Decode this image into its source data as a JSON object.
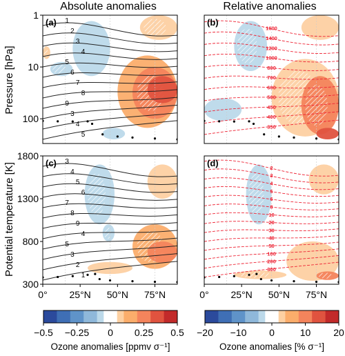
{
  "figure": {
    "col_titles": [
      "Absolute anomalies",
      "Relative anomalies"
    ],
    "row_labels": [
      "Pressure [hPa]",
      "Potential temperature [K]"
    ]
  },
  "colors": {
    "scale": [
      "#2b4a9c",
      "#3f6fb5",
      "#5f93c9",
      "#8fb8da",
      "#bcd9ea",
      "#ffffff",
      "#fdd0a2",
      "#fbad6b",
      "#f4845c",
      "#e0533f",
      "#c22a2a"
    ],
    "zero_band": "#ffffff",
    "contour": "#222222",
    "relative_contour": "#ee2233"
  },
  "chart_data": [
    {
      "type": "heatmap",
      "panel": "(a)",
      "title": "Absolute anomalies",
      "ylabel": "Pressure [hPa]",
      "y_scale": "log",
      "ylim": [
        300,
        1
      ],
      "y_ticks": [
        "1",
        "10",
        "100"
      ],
      "xlim": [
        0,
        90
      ],
      "x_ticks": [],
      "contour_labels": [
        "1",
        "2",
        "3",
        "4",
        "5",
        "6",
        "7",
        "8",
        "9",
        "3",
        "4",
        "5"
      ],
      "anomaly_regions": [
        {
          "sign": "negative",
          "level": -0.1,
          "lat": [
            20,
            45
          ],
          "p": [
            1.3,
            15
          ]
        },
        {
          "sign": "negative",
          "level": -0.05,
          "lat": [
            5,
            20
          ],
          "p": [
            8,
            15
          ]
        },
        {
          "sign": "negative",
          "level": -0.05,
          "lat": [
            40,
            55
          ],
          "p": [
            150,
            250
          ]
        },
        {
          "sign": "positive",
          "level": 0.4,
          "lat": [
            70,
            90
          ],
          "p": [
            15,
            50
          ]
        },
        {
          "sign": "positive",
          "level": 0.3,
          "lat": [
            60,
            90
          ],
          "p": [
            10,
            100
          ]
        },
        {
          "sign": "positive",
          "level": 0.15,
          "lat": [
            50,
            90
          ],
          "p": [
            6,
            150
          ]
        },
        {
          "sign": "positive",
          "level": 0.1,
          "lat": [
            65,
            90
          ],
          "p": [
            1,
            3
          ]
        },
        {
          "sign": "positive",
          "level": 0.05,
          "lat": [
            0,
            5
          ],
          "p": [
            4,
            7
          ]
        }
      ]
    },
    {
      "type": "heatmap",
      "panel": "(b)",
      "title": "Relative anomalies",
      "y_scale": "log",
      "ylim": [
        300,
        1
      ],
      "xlim": [
        0,
        90
      ],
      "x_ticks": [],
      "isentrope_labels": [
        "1600",
        "1400",
        "1200",
        "1000",
        "800",
        "700",
        "600",
        "500",
        "450",
        "400",
        "350"
      ],
      "anomaly_regions": [
        {
          "sign": "negative",
          "level": -5,
          "lat": [
            20,
            42
          ],
          "p": [
            1.3,
            12
          ]
        },
        {
          "sign": "negative",
          "level": -5,
          "lat": [
            0,
            25
          ],
          "p": [
            40,
            110
          ]
        },
        {
          "sign": "positive",
          "level": 15,
          "lat": [
            75,
            90
          ],
          "p": [
            150,
            250
          ]
        },
        {
          "sign": "positive",
          "level": 10,
          "lat": [
            65,
            90
          ],
          "p": [
            15,
            200
          ]
        },
        {
          "sign": "positive",
          "level": 5,
          "lat": [
            45,
            90
          ],
          "p": [
            7,
            220
          ]
        },
        {
          "sign": "positive",
          "level": 5,
          "lat": [
            65,
            90
          ],
          "p": [
            1,
            3
          ]
        }
      ]
    },
    {
      "type": "heatmap",
      "panel": "(c)",
      "ylabel": "Potential temperature [K]",
      "ylim": [
        300,
        1800
      ],
      "y_ticks": [
        "300",
        "800",
        "1300",
        "1800"
      ],
      "xlim": [
        0,
        90
      ],
      "x_ticks": [
        "0°",
        "25°N",
        "50°N",
        "75°N"
      ],
      "contour_labels": [
        "3",
        "4",
        "5",
        "6",
        "7",
        "8",
        "9",
        "4",
        "5",
        "3",
        "2",
        "1"
      ],
      "anomaly_regions": [
        {
          "sign": "negative",
          "level": -0.1,
          "lat": [
            28,
            48
          ],
          "p": [
            1000,
            1700
          ]
        },
        {
          "sign": "negative",
          "level": -0.05,
          "lat": [
            40,
            48
          ],
          "p": [
            800,
            1000
          ]
        },
        {
          "sign": "positive",
          "level": 0.25,
          "lat": [
            70,
            90
          ],
          "p": [
            550,
            800
          ]
        },
        {
          "sign": "positive",
          "level": 0.15,
          "lat": [
            60,
            90
          ],
          "p": [
            480,
            1000
          ]
        },
        {
          "sign": "positive",
          "level": 0.1,
          "lat": [
            70,
            90
          ],
          "p": [
            1300,
            1700
          ]
        },
        {
          "sign": "positive",
          "level": 0.05,
          "lat": [
            30,
            60
          ],
          "p": [
            420,
            560
          ]
        }
      ]
    },
    {
      "type": "heatmap",
      "panel": "(d)",
      "ylim": [
        300,
        1800
      ],
      "xlim": [
        0,
        90
      ],
      "x_ticks": [
        "0°",
        "25°N",
        "50°N",
        "75°N"
      ],
      "pressure_labels": [
        "2",
        "3",
        "4",
        "5",
        "6",
        "8",
        "10",
        "20",
        "30",
        "40",
        "50",
        "100",
        "200",
        "300"
      ],
      "anomaly_regions": [
        {
          "sign": "negative",
          "level": -5,
          "lat": [
            28,
            45
          ],
          "p": [
            1000,
            1700
          ]
        },
        {
          "sign": "positive",
          "level": 10,
          "lat": [
            75,
            90
          ],
          "p": [
            350,
            450
          ]
        },
        {
          "sign": "positive",
          "level": 5,
          "lat": [
            55,
            90
          ],
          "p": [
            340,
            800
          ]
        },
        {
          "sign": "positive",
          "level": 5,
          "lat": [
            20,
            55
          ],
          "p": [
            360,
            460
          ]
        },
        {
          "sign": "positive",
          "level": 5,
          "lat": [
            70,
            90
          ],
          "p": [
            1350,
            1700
          ]
        }
      ]
    },
    {
      "type": "colorbar",
      "label": "Ozone anomalies [ppmv σ⁻¹]",
      "ticks": [
        "-0.5",
        "-0.25",
        "0",
        "0.25",
        "0.5"
      ],
      "range": [
        -0.5,
        0.5
      ]
    },
    {
      "type": "colorbar",
      "label": "Ozone anomalies [% σ⁻¹]",
      "ticks": [
        "-20",
        "-10",
        "0",
        "10",
        "20"
      ],
      "range": [
        -20,
        20
      ]
    }
  ]
}
